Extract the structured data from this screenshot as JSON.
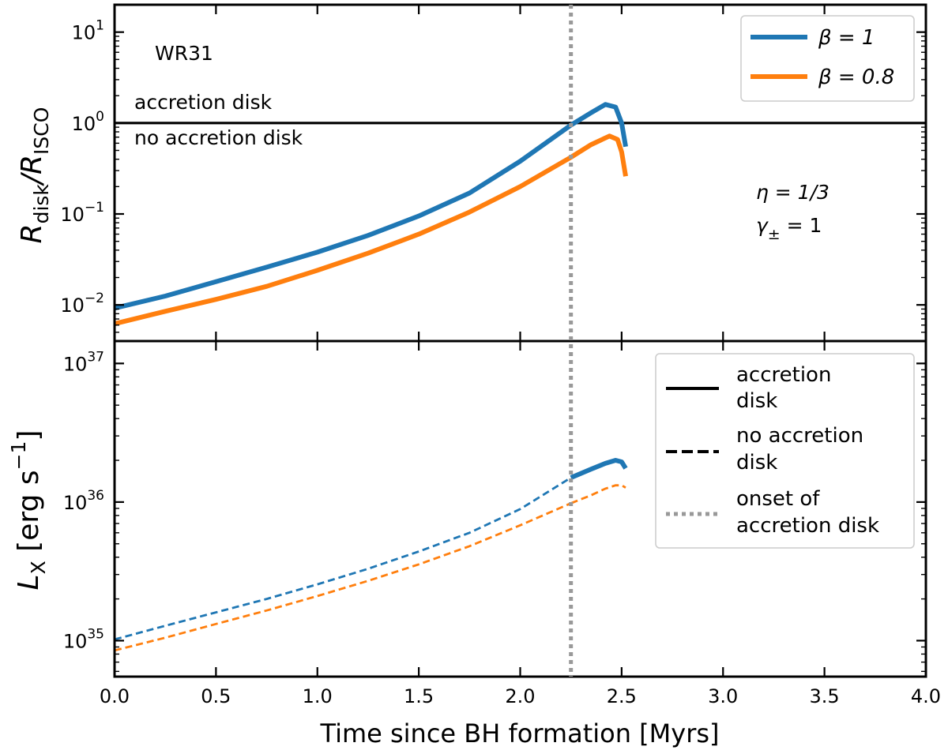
{
  "chart_data": [
    {
      "type": "line",
      "panel": "top",
      "yscale": "log",
      "xlim": [
        0.0,
        4.0
      ],
      "ylim": [
        0.004,
        20
      ],
      "yticks": [
        {
          "value": 0.01,
          "base": "10",
          "exp": "−2"
        },
        {
          "value": 0.1,
          "base": "10",
          "exp": "−1"
        },
        {
          "value": 1,
          "base": "10",
          "exp": "0"
        },
        {
          "value": 10,
          "base": "10",
          "exp": "1"
        }
      ],
      "ylabel": {
        "main": "R",
        "sub1": "disk",
        "sep": "/R",
        "sub2": "ISCO"
      },
      "annotations": {
        "star": "WR31",
        "above_line": "accretion disk",
        "below_line": "no accretion disk",
        "eta": "η = 1/3",
        "gamma": "γ± = 1",
        "gamma_main": "γ",
        "gamma_sub": "±",
        "gamma_rest": " = 1"
      },
      "hline": {
        "y": 1.0,
        "color": "#000000"
      },
      "vline": {
        "x": 2.25,
        "color": "#999999"
      },
      "legend": {
        "placement": "top-right",
        "entries": [
          {
            "label": "β = 1",
            "color": "#1f77b4"
          },
          {
            "label": "β = 0.8",
            "color": "#ff7f0e"
          }
        ]
      },
      "series": [
        {
          "color": "#1f77b4",
          "x": [
            0.0,
            0.25,
            0.5,
            0.75,
            1.0,
            1.25,
            1.5,
            1.75,
            2.0,
            2.25,
            2.35,
            2.42,
            2.47,
            2.5,
            2.52
          ],
          "y": [
            0.0092,
            0.0125,
            0.018,
            0.026,
            0.038,
            0.058,
            0.095,
            0.17,
            0.38,
            0.95,
            1.3,
            1.6,
            1.5,
            1.0,
            0.55
          ]
        },
        {
          "color": "#ff7f0e",
          "x": [
            0.0,
            0.25,
            0.5,
            0.75,
            1.0,
            1.25,
            1.5,
            1.75,
            2.0,
            2.25,
            2.35,
            2.44,
            2.48,
            2.5,
            2.52
          ],
          "y": [
            0.0062,
            0.0085,
            0.0115,
            0.016,
            0.024,
            0.037,
            0.06,
            0.105,
            0.2,
            0.42,
            0.58,
            0.72,
            0.66,
            0.48,
            0.26
          ]
        }
      ]
    },
    {
      "type": "line",
      "panel": "bottom",
      "yscale": "log",
      "xlim": [
        0.0,
        4.0
      ],
      "ylim": [
        5.5e+34,
        1.45e+37
      ],
      "xlabel": "Time since BH formation [Myrs]",
      "xticks": [
        "0.0",
        "0.5",
        "1.0",
        "1.5",
        "2.0",
        "2.5",
        "3.0",
        "3.5",
        "4.0"
      ],
      "yticks": [
        {
          "value": 1e+35,
          "base": "10",
          "exp": "35"
        },
        {
          "value": 1e+36,
          "base": "10",
          "exp": "36"
        },
        {
          "value": 1e+37,
          "base": "10",
          "exp": "37"
        }
      ],
      "ylabel": {
        "main": "L",
        "sub": "X",
        "unit1": " [erg s",
        "unit_exp": "−1",
        "unit2": "]"
      },
      "vline": {
        "x": 2.25,
        "color": "#999999"
      },
      "legend": {
        "placement": "top-right",
        "entries": [
          {
            "line1": "accretion",
            "line2": "disk",
            "style": "solid",
            "color": "#000000"
          },
          {
            "line1": "no accretion",
            "line2": "disk",
            "style": "dashed",
            "color": "#000000"
          },
          {
            "line1": "onset of",
            "line2": "accretion disk",
            "style": "dotted",
            "color": "#999999"
          }
        ]
      },
      "series": [
        {
          "color": "#1f77b4",
          "x": [
            0.0,
            0.25,
            0.5,
            0.75,
            1.0,
            1.25,
            1.5,
            1.75,
            2.0,
            2.25,
            2.35,
            2.42,
            2.47,
            2.5,
            2.52
          ],
          "y": [
            1.02e+35,
            1.28e+35,
            1.6e+35,
            2e+35,
            2.55e+35,
            3.3e+35,
            4.4e+35,
            6e+35,
            8.9e+35,
            1.5e+36,
            1.73e+36,
            1.9e+36,
            2e+36,
            1.95e+36,
            1.75e+36
          ]
        },
        {
          "color": "#ff7f0e",
          "x": [
            0.0,
            0.25,
            0.5,
            0.75,
            1.0,
            1.25,
            1.5,
            1.75,
            2.0,
            2.25,
            2.35,
            2.42,
            2.47,
            2.5,
            2.52
          ],
          "y": [
            8.5e+34,
            1.05e+35,
            1.32e+35,
            1.65e+35,
            2.1e+35,
            2.7e+35,
            3.55e+35,
            4.8e+35,
            6.8e+35,
            9.8e+35,
            1.12e+36,
            1.25e+36,
            1.32e+36,
            1.32e+36,
            1.27e+36
          ]
        }
      ]
    }
  ]
}
